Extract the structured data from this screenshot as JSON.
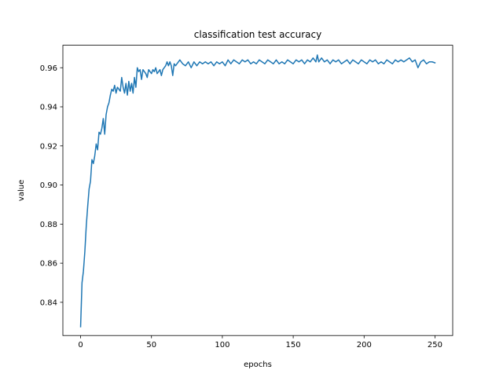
{
  "chart_data": {
    "type": "line",
    "title": "classification test accuracy",
    "xlabel": "epochs",
    "ylabel": "value",
    "xlim": [
      -12.5,
      262.5
    ],
    "ylim": [
      0.823,
      0.9715
    ],
    "xticks": [
      0,
      50,
      100,
      150,
      200,
      250
    ],
    "xtick_labels": [
      "0",
      "50",
      "100",
      "150",
      "200",
      "250"
    ],
    "yticks": [
      0.84,
      0.86,
      0.88,
      0.9,
      0.92,
      0.94,
      0.96
    ],
    "ytick_labels": [
      "0.84",
      "0.86",
      "0.88",
      "0.90",
      "0.92",
      "0.94",
      "0.96"
    ],
    "grid": false,
    "series": [
      {
        "color": "#1f77b4",
        "points": [
          [
            0,
            0.8275
          ],
          [
            1,
            0.85
          ],
          [
            2,
            0.856
          ],
          [
            3,
            0.866
          ],
          [
            4,
            0.879
          ],
          [
            5,
            0.889
          ],
          [
            6,
            0.898
          ],
          [
            7,
            0.902
          ],
          [
            8,
            0.913
          ],
          [
            9,
            0.911
          ],
          [
            10,
            0.915
          ],
          [
            11,
            0.921
          ],
          [
            12,
            0.918
          ],
          [
            13,
            0.927
          ],
          [
            14,
            0.926
          ],
          [
            15,
            0.929
          ],
          [
            16,
            0.934
          ],
          [
            17,
            0.926
          ],
          [
            18,
            0.936
          ],
          [
            19,
            0.94
          ],
          [
            20,
            0.942
          ],
          [
            21,
            0.946
          ],
          [
            22,
            0.949
          ],
          [
            23,
            0.948
          ],
          [
            24,
            0.951
          ],
          [
            25,
            0.947
          ],
          [
            26,
            0.95
          ],
          [
            27,
            0.949
          ],
          [
            28,
            0.948
          ],
          [
            29,
            0.955
          ],
          [
            30,
            0.95
          ],
          [
            31,
            0.947
          ],
          [
            32,
            0.952
          ],
          [
            33,
            0.946
          ],
          [
            34,
            0.953
          ],
          [
            35,
            0.948
          ],
          [
            36,
            0.952
          ],
          [
            37,
            0.947
          ],
          [
            38,
            0.955
          ],
          [
            39,
            0.95
          ],
          [
            40,
            0.96
          ],
          [
            41,
            0.958
          ],
          [
            42,
            0.959
          ],
          [
            43,
            0.954
          ],
          [
            44,
            0.959
          ],
          [
            45,
            0.958
          ],
          [
            46,
            0.957
          ],
          [
            47,
            0.955
          ],
          [
            48,
            0.959
          ],
          [
            49,
            0.958
          ],
          [
            50,
            0.957
          ],
          [
            51,
            0.959
          ],
          [
            52,
            0.958
          ],
          [
            53,
            0.96
          ],
          [
            54,
            0.957
          ],
          [
            55,
            0.958
          ],
          [
            56,
            0.959
          ],
          [
            57,
            0.956
          ],
          [
            58,
            0.959
          ],
          [
            59,
            0.96
          ],
          [
            60,
            0.961
          ],
          [
            61,
            0.963
          ],
          [
            62,
            0.961
          ],
          [
            63,
            0.963
          ],
          [
            64,
            0.961
          ],
          [
            65,
            0.956
          ],
          [
            66,
            0.962
          ],
          [
            67,
            0.961
          ],
          [
            68,
            0.962
          ],
          [
            69,
            0.963
          ],
          [
            70,
            0.964
          ],
          [
            72,
            0.962
          ],
          [
            74,
            0.961
          ],
          [
            76,
            0.963
          ],
          [
            78,
            0.96
          ],
          [
            80,
            0.963
          ],
          [
            82,
            0.961
          ],
          [
            84,
            0.963
          ],
          [
            86,
            0.962
          ],
          [
            88,
            0.963
          ],
          [
            90,
            0.962
          ],
          [
            92,
            0.963
          ],
          [
            94,
            0.961
          ],
          [
            96,
            0.963
          ],
          [
            98,
            0.962
          ],
          [
            100,
            0.963
          ],
          [
            102,
            0.961
          ],
          [
            104,
            0.964
          ],
          [
            106,
            0.962
          ],
          [
            108,
            0.964
          ],
          [
            110,
            0.963
          ],
          [
            112,
            0.962
          ],
          [
            114,
            0.964
          ],
          [
            116,
            0.963
          ],
          [
            118,
            0.964
          ],
          [
            120,
            0.962
          ],
          [
            122,
            0.963
          ],
          [
            124,
            0.962
          ],
          [
            126,
            0.964
          ],
          [
            128,
            0.963
          ],
          [
            130,
            0.962
          ],
          [
            132,
            0.964
          ],
          [
            134,
            0.963
          ],
          [
            136,
            0.962
          ],
          [
            138,
            0.964
          ],
          [
            140,
            0.962
          ],
          [
            142,
            0.963
          ],
          [
            144,
            0.962
          ],
          [
            146,
            0.964
          ],
          [
            148,
            0.963
          ],
          [
            150,
            0.962
          ],
          [
            152,
            0.964
          ],
          [
            154,
            0.963
          ],
          [
            156,
            0.964
          ],
          [
            158,
            0.962
          ],
          [
            160,
            0.964
          ],
          [
            162,
            0.963
          ],
          [
            164,
            0.965
          ],
          [
            166,
            0.963
          ],
          [
            167,
            0.9665
          ],
          [
            168,
            0.963
          ],
          [
            170,
            0.965
          ],
          [
            172,
            0.963
          ],
          [
            174,
            0.964
          ],
          [
            176,
            0.962
          ],
          [
            178,
            0.964
          ],
          [
            180,
            0.963
          ],
          [
            182,
            0.964
          ],
          [
            184,
            0.962
          ],
          [
            186,
            0.963
          ],
          [
            188,
            0.964
          ],
          [
            190,
            0.962
          ],
          [
            192,
            0.964
          ],
          [
            194,
            0.963
          ],
          [
            196,
            0.962
          ],
          [
            198,
            0.964
          ],
          [
            200,
            0.963
          ],
          [
            202,
            0.962
          ],
          [
            204,
            0.964
          ],
          [
            206,
            0.963
          ],
          [
            208,
            0.964
          ],
          [
            210,
            0.962
          ],
          [
            212,
            0.963
          ],
          [
            214,
            0.962
          ],
          [
            216,
            0.964
          ],
          [
            218,
            0.963
          ],
          [
            220,
            0.962
          ],
          [
            222,
            0.964
          ],
          [
            224,
            0.963
          ],
          [
            226,
            0.964
          ],
          [
            228,
            0.963
          ],
          [
            230,
            0.964
          ],
          [
            232,
            0.965
          ],
          [
            234,
            0.963
          ],
          [
            236,
            0.964
          ],
          [
            238,
            0.96
          ],
          [
            240,
            0.963
          ],
          [
            242,
            0.964
          ],
          [
            244,
            0.962
          ],
          [
            246,
            0.963
          ],
          [
            248,
            0.963
          ],
          [
            250,
            0.9625
          ]
        ]
      }
    ]
  }
}
